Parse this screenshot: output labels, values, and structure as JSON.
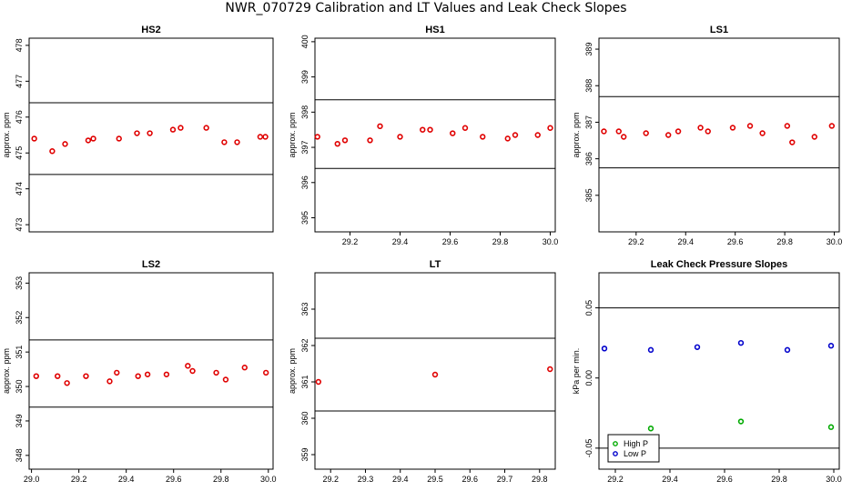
{
  "figure": {
    "title": "NWR_070729  Calibration and LT Values and Leak Check Slopes"
  },
  "colors": {
    "red": "#e00000",
    "green": "#00aa00",
    "blue": "#0000cc",
    "axis": "#000000"
  },
  "chart_data": [
    {
      "id": "hs2",
      "type": "scatter",
      "title": "HS2",
      "ylabel": "approx. ppm",
      "xlim": [
        29.07,
        30.02
      ],
      "ylim": [
        472.8,
        478.2
      ],
      "xticks": [],
      "xticklabels": [],
      "yticks": [
        473,
        474,
        475,
        476,
        477,
        478
      ],
      "yticklabels": [
        "473",
        "474",
        "475",
        "476",
        "477",
        "478"
      ],
      "hlines": [
        474.4,
        476.4
      ],
      "series": [
        {
          "color": "#e00000",
          "marker": "circle",
          "x": [
            29.09,
            29.16,
            29.21,
            29.3,
            29.32,
            29.42,
            29.49,
            29.54,
            29.63,
            29.66,
            29.76,
            29.83,
            29.88,
            29.97,
            29.99
          ],
          "y": [
            475.4,
            475.05,
            475.25,
            475.35,
            475.4,
            475.4,
            475.55,
            475.55,
            475.65,
            475.7,
            475.7,
            475.3,
            475.3,
            475.45,
            475.45
          ]
        }
      ]
    },
    {
      "id": "hs1",
      "type": "scatter",
      "title": "HS1",
      "ylabel": "approx. ppm",
      "xlim": [
        29.06,
        30.02
      ],
      "ylim": [
        394.6,
        400.1
      ],
      "xticks": [
        29.2,
        29.4,
        29.6,
        29.8,
        30.0
      ],
      "xticklabels": [
        "29.2",
        "29.4",
        "29.6",
        "29.8",
        "30.0"
      ],
      "yticks": [
        395,
        396,
        397,
        398,
        399,
        400
      ],
      "yticklabels": [
        "395",
        "396",
        "397",
        "398",
        "399",
        "400"
      ],
      "hlines": [
        396.4,
        398.35
      ],
      "series": [
        {
          "color": "#e00000",
          "marker": "circle",
          "x": [
            29.07,
            29.15,
            29.18,
            29.28,
            29.32,
            29.4,
            29.49,
            29.52,
            29.61,
            29.66,
            29.73,
            29.83,
            29.86,
            29.95,
            30.0
          ],
          "y": [
            397.3,
            397.1,
            397.2,
            397.2,
            397.6,
            397.3,
            397.5,
            397.5,
            397.4,
            397.55,
            397.3,
            397.25,
            397.35,
            397.35,
            397.55
          ]
        }
      ]
    },
    {
      "id": "ls1",
      "type": "scatter",
      "title": "LS1",
      "ylabel": "approx. ppm",
      "xlim": [
        29.05,
        30.02
      ],
      "ylim": [
        384.0,
        389.3
      ],
      "xticks": [
        29.2,
        29.4,
        29.6,
        29.8,
        30.0
      ],
      "xticklabels": [
        "29.2",
        "29.4",
        "29.6",
        "29.8",
        "30.0"
      ],
      "yticks": [
        385,
        386,
        387,
        388,
        389
      ],
      "yticklabels": [
        "385",
        "386",
        "387",
        "388",
        "389"
      ],
      "hlines": [
        385.75,
        387.7
      ],
      "series": [
        {
          "color": "#e00000",
          "marker": "circle",
          "x": [
            29.07,
            29.13,
            29.15,
            29.24,
            29.33,
            29.37,
            29.46,
            29.49,
            29.59,
            29.66,
            29.71,
            29.81,
            29.83,
            29.92,
            29.99
          ],
          "y": [
            386.75,
            386.75,
            386.6,
            386.7,
            386.65,
            386.75,
            386.85,
            386.75,
            386.85,
            386.9,
            386.7,
            386.9,
            386.45,
            386.6,
            386.9
          ]
        }
      ]
    },
    {
      "id": "ls2",
      "type": "scatter",
      "title": "LS2",
      "ylabel": "approx. ppm",
      "xlim": [
        28.99,
        30.02
      ],
      "ylim": [
        347.6,
        353.3
      ],
      "xticks": [
        29.0,
        29.2,
        29.4,
        29.6,
        29.8,
        30.0
      ],
      "xticklabels": [
        "29.0",
        "29.2",
        "29.4",
        "29.6",
        "29.8",
        "30.0"
      ],
      "yticks": [
        348,
        349,
        350,
        351,
        352,
        353
      ],
      "yticklabels": [
        "348",
        "349",
        "350",
        "351",
        "352",
        "353"
      ],
      "hlines": [
        349.4,
        351.35
      ],
      "series": [
        {
          "color": "#e00000",
          "marker": "circle",
          "x": [
            29.02,
            29.11,
            29.15,
            29.23,
            29.33,
            29.36,
            29.45,
            29.49,
            29.57,
            29.66,
            29.68,
            29.78,
            29.82,
            29.9,
            29.99
          ],
          "y": [
            350.3,
            350.3,
            350.1,
            350.3,
            350.15,
            350.4,
            350.3,
            350.35,
            350.35,
            350.6,
            350.45,
            350.4,
            350.2,
            350.55,
            350.4
          ]
        }
      ]
    },
    {
      "id": "lt",
      "type": "scatter",
      "title": "LT",
      "ylabel": "approx. ppm",
      "xlim": [
        29.155,
        29.845
      ],
      "ylim": [
        358.6,
        364.0
      ],
      "xticks": [
        29.2,
        29.3,
        29.4,
        29.5,
        29.6,
        29.7,
        29.8
      ],
      "xticklabels": [
        "29.2",
        "29.3",
        "29.4",
        "29.5",
        "29.6",
        "29.7",
        "29.8"
      ],
      "yticks": [
        359,
        360,
        361,
        362,
        363
      ],
      "yticklabels": [
        "359",
        "360",
        "361",
        "362",
        "363"
      ],
      "hlines": [
        360.2,
        362.2
      ],
      "series": [
        {
          "color": "#e00000",
          "marker": "circle",
          "x": [
            29.165,
            29.5,
            29.83
          ],
          "y": [
            361.0,
            361.2,
            361.35
          ]
        }
      ]
    },
    {
      "id": "leak",
      "type": "scatter",
      "title": "Leak Check Pressure Slopes",
      "ylabel": "kPa per min.",
      "xlim": [
        29.14,
        30.02
      ],
      "ylim": [
        -0.065,
        0.075
      ],
      "xticks": [
        29.2,
        29.4,
        29.6,
        29.8,
        30.0
      ],
      "xticklabels": [
        "29.2",
        "29.4",
        "29.6",
        "29.8",
        "30.0"
      ],
      "yticks": [
        -0.05,
        0.0,
        0.05
      ],
      "yticklabels": [
        "-0.05",
        "0.00",
        "0.05"
      ],
      "hlines": [
        0.05,
        -0.05
      ],
      "series": [
        {
          "name": "High P",
          "color": "#00aa00",
          "marker": "circle",
          "x": [
            29.33,
            29.66,
            29.99
          ],
          "y": [
            -0.036,
            -0.031,
            -0.035
          ]
        },
        {
          "name": "Low P",
          "color": "#0000cc",
          "marker": "circle",
          "x": [
            29.16,
            29.33,
            29.5,
            29.66,
            29.83,
            29.99
          ],
          "y": [
            0.021,
            0.02,
            0.022,
            0.025,
            0.02,
            0.023
          ]
        }
      ],
      "legend": {
        "position": "bottom-left",
        "entries": [
          "High P",
          "Low P"
        ]
      }
    }
  ]
}
